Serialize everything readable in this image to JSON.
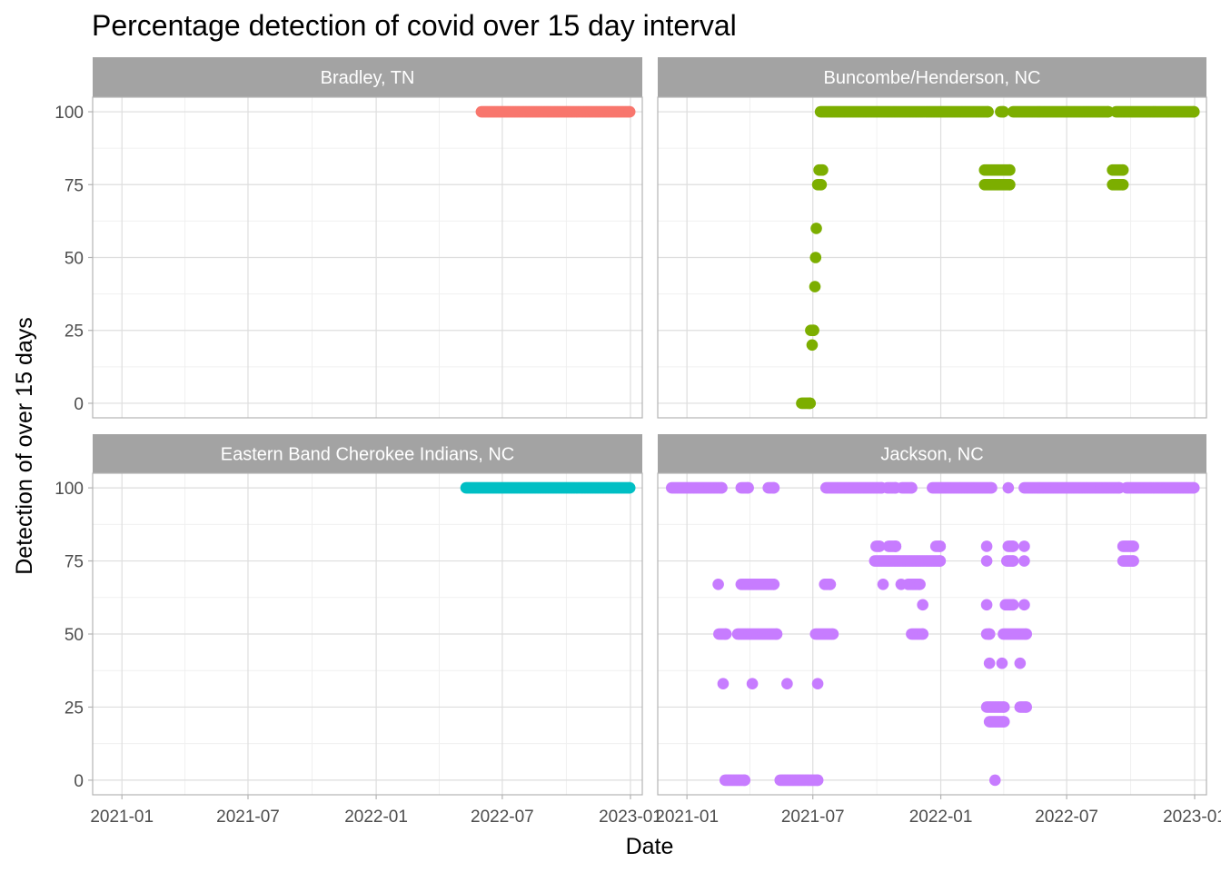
{
  "chart_data": {
    "type": "scatter",
    "title": "Percentage detection of covid over 15 day interval",
    "xlabel": "Date",
    "ylabel": "Detection of over 15 days",
    "x_ticks": [
      "2021-01",
      "2021-07",
      "2022-01",
      "2022-07",
      "2023-01"
    ],
    "y_ticks": [
      0,
      25,
      50,
      75,
      100
    ],
    "xlim": [
      "2020-11-20",
      "2023-01-18"
    ],
    "ylim": [
      -5,
      105
    ],
    "grid": true,
    "legend": "none",
    "facets": [
      {
        "name": "Bradley, TN",
        "color": "#F8766D",
        "runs": [
          {
            "y": 100,
            "from": "2022-06-01",
            "to": "2022-12-31"
          }
        ],
        "points": []
      },
      {
        "name": "Buncombe/Henderson, NC",
        "color": "#7CAE00",
        "runs": [
          {
            "y": 100,
            "from": "2021-07-12",
            "to": "2022-03-10"
          },
          {
            "y": 100,
            "from": "2022-03-28",
            "to": "2022-04-01"
          },
          {
            "y": 100,
            "from": "2022-04-15",
            "to": "2022-08-30"
          },
          {
            "y": 100,
            "from": "2022-09-10",
            "to": "2022-12-31"
          },
          {
            "y": 80,
            "from": "2021-07-10",
            "to": "2021-07-15"
          },
          {
            "y": 75,
            "from": "2021-07-08",
            "to": "2021-07-13"
          },
          {
            "y": 80,
            "from": "2022-03-05",
            "to": "2022-04-10"
          },
          {
            "y": 75,
            "from": "2022-03-05",
            "to": "2022-04-10"
          },
          {
            "y": 80,
            "from": "2022-09-05",
            "to": "2022-09-20"
          },
          {
            "y": 75,
            "from": "2022-09-05",
            "to": "2022-09-20"
          },
          {
            "y": 25,
            "from": "2021-06-28",
            "to": "2021-07-02"
          },
          {
            "y": 0,
            "from": "2021-06-15",
            "to": "2021-06-27"
          }
        ],
        "points": [
          {
            "x": "2021-07-06",
            "y": 60
          },
          {
            "x": "2021-07-05",
            "y": 50
          },
          {
            "x": "2021-07-04",
            "y": 40
          },
          {
            "x": "2021-06-30",
            "y": 20
          }
        ]
      },
      {
        "name": "Eastern Band Cherokee Indians, NC",
        "color": "#00BFC4",
        "runs": [
          {
            "y": 100,
            "from": "2022-05-10",
            "to": "2022-12-31"
          }
        ],
        "points": []
      },
      {
        "name": "Jackson, NC",
        "color": "#C77CFF",
        "runs": [
          {
            "y": 100,
            "from": "2020-12-10",
            "to": "2021-02-20"
          },
          {
            "y": 100,
            "from": "2021-03-20",
            "to": "2021-03-30"
          },
          {
            "y": 100,
            "from": "2021-04-28",
            "to": "2021-05-06"
          },
          {
            "y": 100,
            "from": "2021-07-20",
            "to": "2021-10-08"
          },
          {
            "y": 100,
            "from": "2021-10-16",
            "to": "2021-10-28"
          },
          {
            "y": 100,
            "from": "2021-11-06",
            "to": "2021-11-20"
          },
          {
            "y": 100,
            "from": "2021-12-20",
            "to": "2022-03-15"
          },
          {
            "y": 100,
            "from": "2022-05-01",
            "to": "2022-09-15"
          },
          {
            "y": 100,
            "from": "2022-09-25",
            "to": "2022-12-31"
          },
          {
            "y": 80,
            "from": "2021-09-30",
            "to": "2021-10-05"
          },
          {
            "y": 80,
            "from": "2021-10-18",
            "to": "2021-10-28"
          },
          {
            "y": 80,
            "from": "2021-12-25",
            "to": "2021-12-31"
          },
          {
            "y": 80,
            "from": "2022-04-08",
            "to": "2022-04-15"
          },
          {
            "y": 80,
            "from": "2022-09-20",
            "to": "2022-10-05"
          },
          {
            "y": 75,
            "from": "2021-09-28",
            "to": "2021-12-31"
          },
          {
            "y": 75,
            "from": "2022-04-06",
            "to": "2022-04-15"
          },
          {
            "y": 75,
            "from": "2022-09-20",
            "to": "2022-10-05"
          },
          {
            "y": 67,
            "from": "2021-03-20",
            "to": "2021-05-06"
          },
          {
            "y": 67,
            "from": "2021-07-18",
            "to": "2021-07-26"
          },
          {
            "y": 67,
            "from": "2021-11-15",
            "to": "2021-12-02"
          },
          {
            "y": 60,
            "from": "2022-04-04",
            "to": "2022-04-15"
          },
          {
            "y": 50,
            "from": "2021-02-16",
            "to": "2021-02-26"
          },
          {
            "y": 50,
            "from": "2021-03-15",
            "to": "2021-05-10"
          },
          {
            "y": 50,
            "from": "2021-07-05",
            "to": "2021-07-30"
          },
          {
            "y": 50,
            "from": "2021-11-20",
            "to": "2021-12-06"
          },
          {
            "y": 50,
            "from": "2022-03-08",
            "to": "2022-03-12"
          },
          {
            "y": 50,
            "from": "2022-04-01",
            "to": "2022-05-04"
          },
          {
            "y": 25,
            "from": "2022-03-08",
            "to": "2022-04-02"
          },
          {
            "y": 25,
            "from": "2022-04-25",
            "to": "2022-05-04"
          },
          {
            "y": 20,
            "from": "2022-03-12",
            "to": "2022-04-02"
          },
          {
            "y": 0,
            "from": "2021-02-25",
            "to": "2021-03-25"
          },
          {
            "y": 0,
            "from": "2021-05-15",
            "to": "2021-07-08"
          }
        ],
        "points": [
          {
            "x": "2021-02-15",
            "y": 67
          },
          {
            "x": "2021-10-10",
            "y": 67
          },
          {
            "x": "2021-11-05",
            "y": 67
          },
          {
            "x": "2021-12-06",
            "y": 60
          },
          {
            "x": "2022-03-08",
            "y": 60
          },
          {
            "x": "2022-05-01",
            "y": 60
          },
          {
            "x": "2022-03-08",
            "y": 80
          },
          {
            "x": "2022-03-08",
            "y": 75
          },
          {
            "x": "2022-05-01",
            "y": 80
          },
          {
            "x": "2022-05-01",
            "y": 75
          },
          {
            "x": "2021-10-28",
            "y": 80
          },
          {
            "x": "2022-03-12",
            "y": 40
          },
          {
            "x": "2022-03-30",
            "y": 40
          },
          {
            "x": "2022-04-25",
            "y": 40
          },
          {
            "x": "2021-02-22",
            "y": 33
          },
          {
            "x": "2021-04-05",
            "y": 33
          },
          {
            "x": "2021-05-25",
            "y": 33
          },
          {
            "x": "2021-07-08",
            "y": 33
          },
          {
            "x": "2022-03-20",
            "y": 0
          },
          {
            "x": "2022-04-08",
            "y": 100
          }
        ]
      }
    ]
  }
}
